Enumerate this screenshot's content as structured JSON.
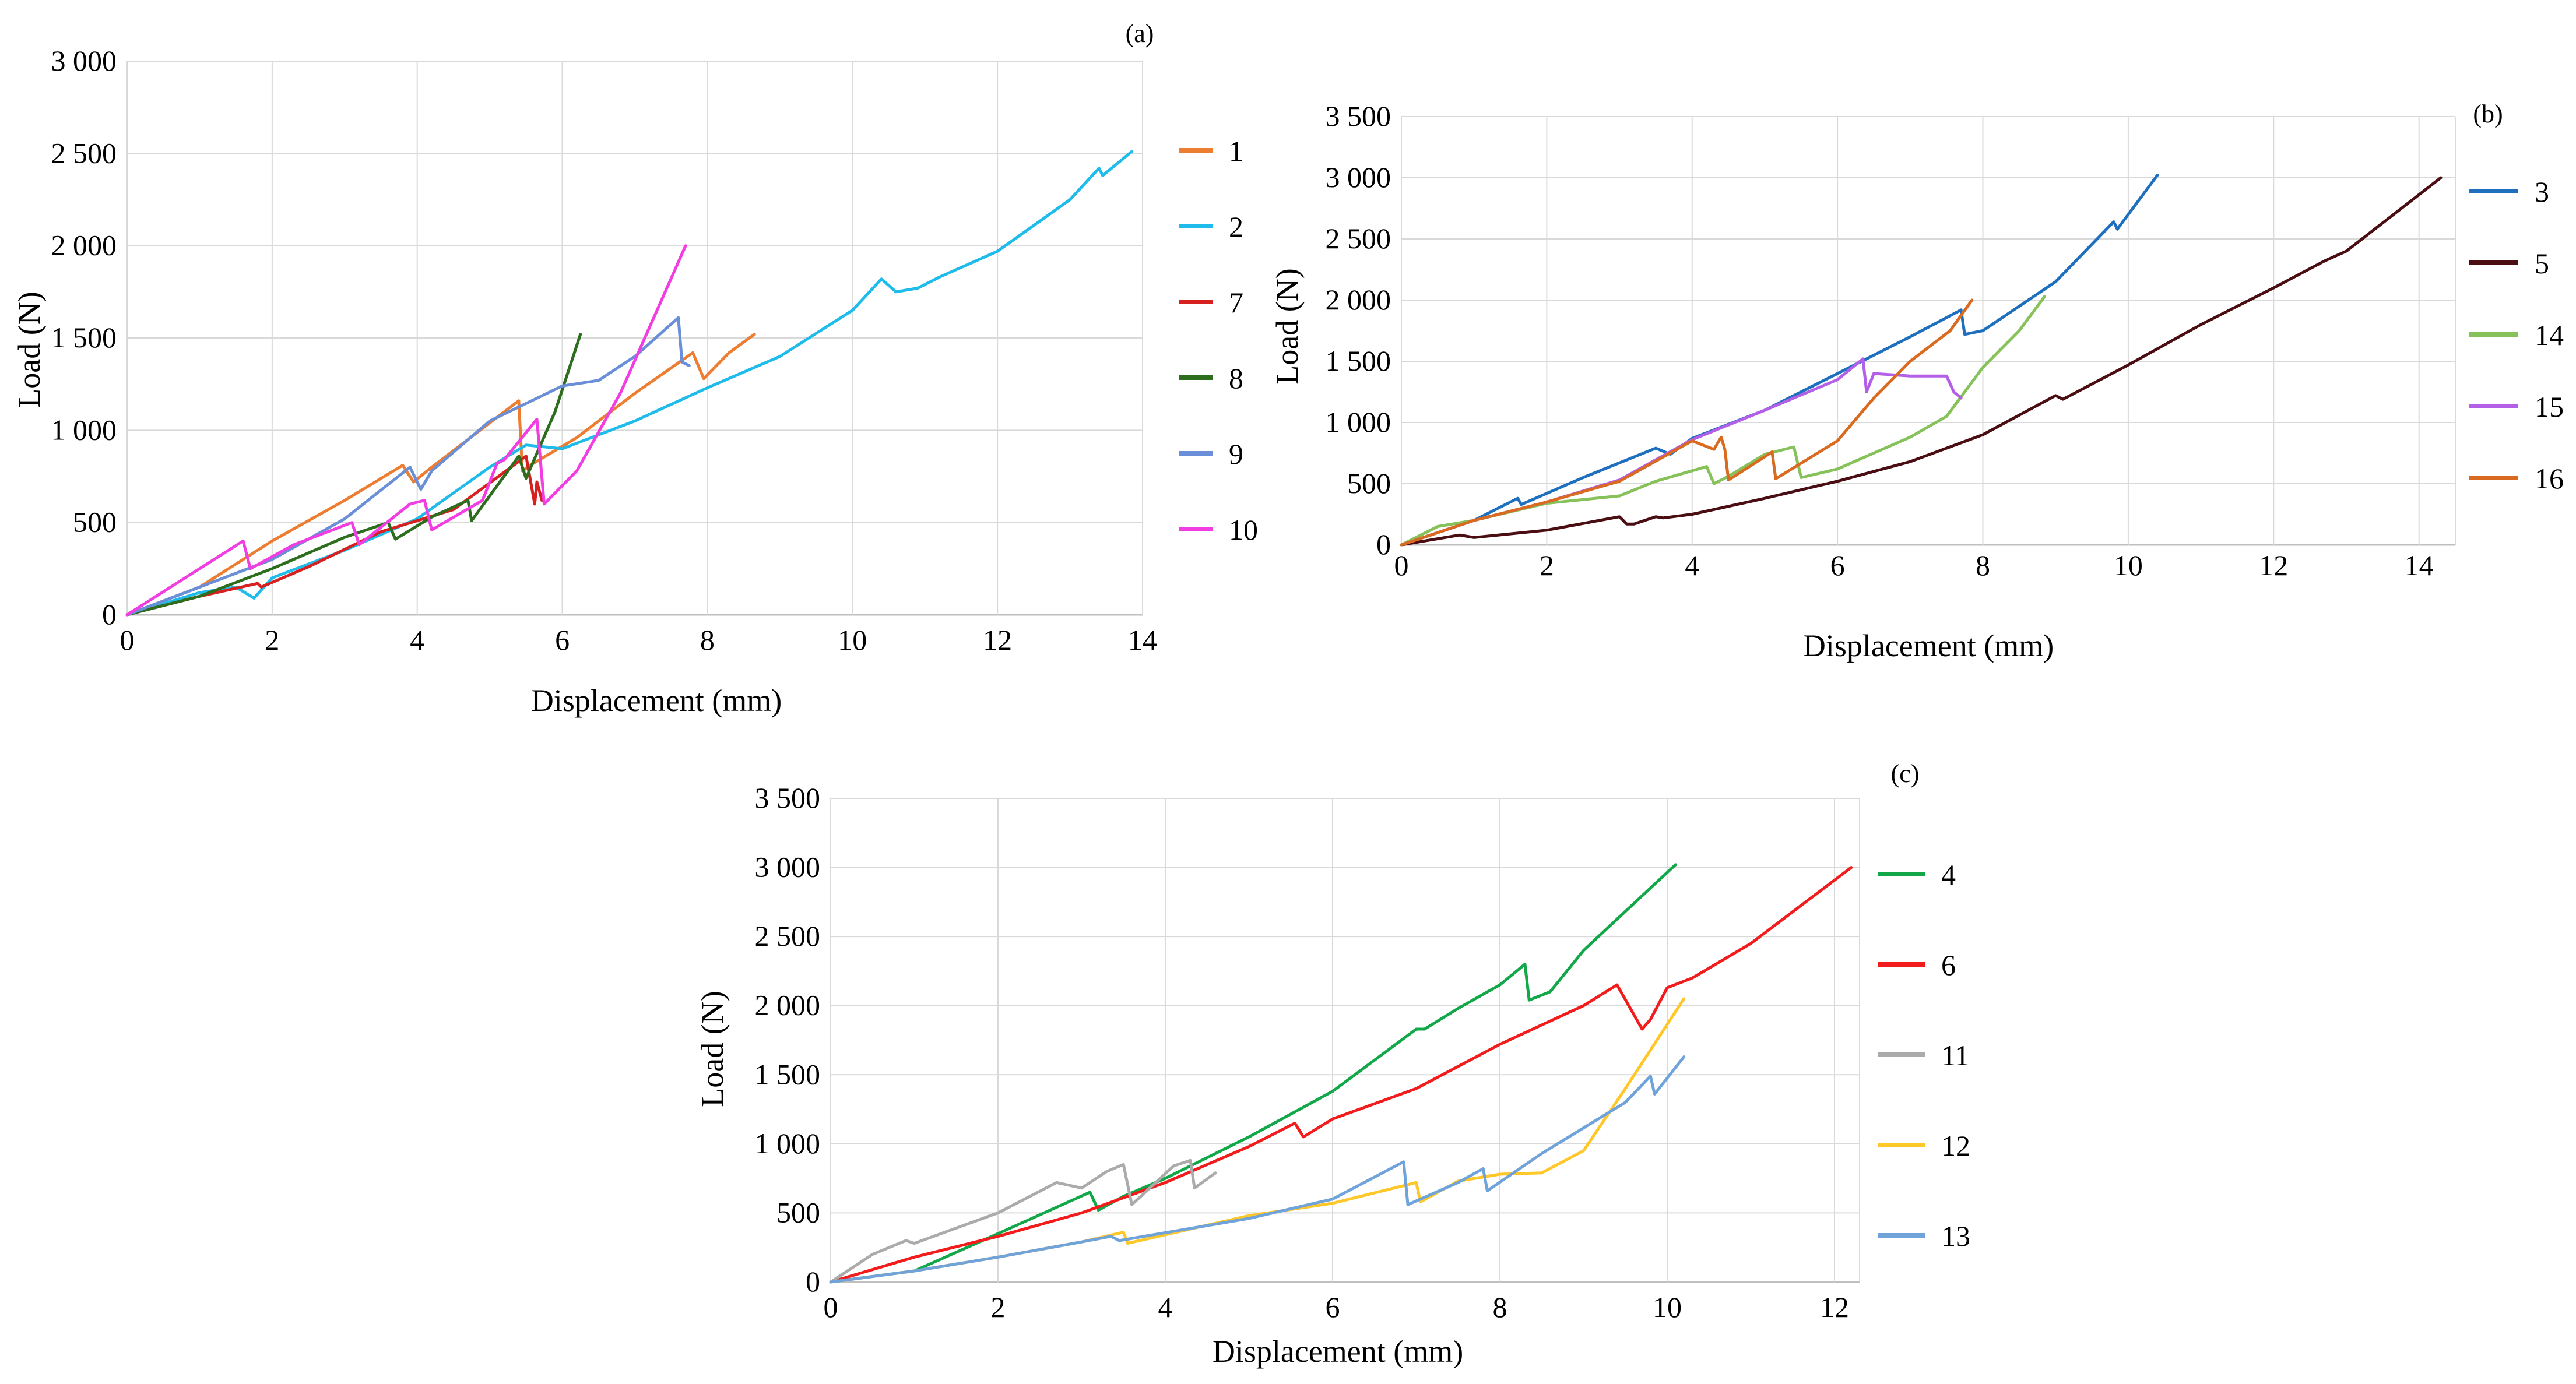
{
  "figure": {
    "panels": [
      "(a)",
      "(b)",
      "(c)"
    ]
  },
  "chart_data": [
    {
      "id": "a",
      "type": "line",
      "panel_label": "(a)",
      "xlabel": "Displacement (mm)",
      "ylabel": "Load (N)",
      "xlim": [
        0,
        14
      ],
      "ylim": [
        0,
        3000
      ],
      "xticks": [
        0,
        2,
        4,
        6,
        8,
        10,
        12,
        14
      ],
      "yticks": [
        0,
        500,
        1000,
        1500,
        2000,
        2500,
        3000
      ],
      "xtick_labels": [
        "0",
        "2",
        "4",
        "6",
        "8",
        "10",
        "12",
        "14"
      ],
      "ytick_labels": [
        "0",
        "500",
        "1 000",
        "1 500",
        "2 000",
        "2 500",
        "3 000"
      ],
      "grid": true,
      "legend_position": "right",
      "series": [
        {
          "name": "1",
          "color": "#ED7D31",
          "x": [
            0,
            1,
            2,
            3,
            3.8,
            3.95,
            4.2,
            5.4,
            5.45,
            5.6,
            6.2,
            7.0,
            7.8,
            7.95,
            8.3,
            8.65
          ],
          "y": [
            0,
            150,
            400,
            620,
            810,
            720,
            800,
            1160,
            780,
            820,
            960,
            1200,
            1420,
            1280,
            1420,
            1520
          ]
        },
        {
          "name": "2",
          "color": "#1FBCEB",
          "x": [
            0,
            1,
            1.5,
            1.75,
            2.0,
            3,
            4,
            5,
            5.5,
            6,
            7,
            8,
            9,
            10,
            10.4,
            10.6,
            10.9,
            11.2,
            12,
            13,
            13.4,
            13.45,
            13.85
          ],
          "y": [
            0,
            120,
            150,
            90,
            200,
            350,
            520,
            800,
            920,
            900,
            1050,
            1230,
            1400,
            1650,
            1820,
            1750,
            1770,
            1830,
            1970,
            2250,
            2420,
            2380,
            2510
          ]
        },
        {
          "name": "7",
          "color": "#D72020",
          "x": [
            0,
            1,
            1.8,
            1.85,
            2.5,
            3.5,
            4.5,
            5.5,
            5.62,
            5.65,
            5.72
          ],
          "y": [
            0,
            100,
            170,
            150,
            260,
            450,
            570,
            860,
            600,
            720,
            620
          ]
        },
        {
          "name": "8",
          "color": "#2D6E1E",
          "x": [
            0,
            1,
            2,
            3,
            3.6,
            3.7,
            4.2,
            4.7,
            4.75,
            5.4,
            5.5,
            5.9,
            6.25
          ],
          "y": [
            0,
            100,
            250,
            420,
            500,
            410,
            530,
            620,
            510,
            860,
            740,
            1100,
            1520
          ]
        },
        {
          "name": "9",
          "color": "#6A8FD8",
          "x": [
            0,
            1,
            2,
            3,
            3.9,
            4.05,
            4.2,
            5,
            6,
            6.5,
            7.0,
            7.6,
            7.65,
            7.75
          ],
          "y": [
            0,
            150,
            300,
            520,
            800,
            680,
            780,
            1050,
            1240,
            1270,
            1400,
            1610,
            1370,
            1350
          ]
        },
        {
          "name": "10",
          "color": "#F23DE2",
          "x": [
            0,
            0.8,
            1.6,
            1.7,
            2.3,
            3.1,
            3.2,
            3.9,
            4.1,
            4.2,
            4.9,
            5.1,
            5.2,
            5.65,
            5.75,
            6.2,
            6.8,
            7.7
          ],
          "y": [
            0,
            200,
            400,
            250,
            380,
            500,
            380,
            600,
            620,
            460,
            620,
            820,
            840,
            1060,
            600,
            780,
            1200,
            2000
          ]
        }
      ]
    },
    {
      "id": "b",
      "type": "line",
      "panel_label": "(b)",
      "xlabel": "Displacement (mm)",
      "ylabel": "Load (N)",
      "xlim": [
        0,
        14.5
      ],
      "ylim": [
        0,
        3500
      ],
      "xticks": [
        0,
        2,
        4,
        6,
        8,
        10,
        12,
        14
      ],
      "yticks": [
        0,
        500,
        1000,
        1500,
        2000,
        2500,
        3000,
        3500
      ],
      "xtick_labels": [
        "0",
        "2",
        "4",
        "6",
        "8",
        "10",
        "12",
        "14"
      ],
      "ytick_labels": [
        "0",
        "500",
        "1 000",
        "1 500",
        "2 000",
        "2 500",
        "3 000",
        "3 500"
      ],
      "grid": true,
      "legend_position": "right",
      "series": [
        {
          "name": "3",
          "color": "#1F6FBF",
          "x": [
            0,
            1,
            1.6,
            1.65,
            2.5,
            3.5,
            3.7,
            4,
            5,
            6,
            7,
            7.7,
            7.75,
            8,
            9,
            9.8,
            9.85,
            10.4
          ],
          "y": [
            0,
            200,
            380,
            330,
            550,
            790,
            740,
            870,
            1100,
            1400,
            1700,
            1920,
            1720,
            1750,
            2150,
            2640,
            2580,
            3020
          ]
        },
        {
          "name": "5",
          "color": "#4A0E12",
          "x": [
            0,
            0.8,
            1.0,
            2,
            3,
            3.1,
            3.2,
            3.5,
            3.6,
            4,
            5,
            6,
            7,
            8,
            9,
            9.1,
            9.2,
            10,
            11,
            12,
            12.7,
            13,
            14.3
          ],
          "y": [
            0,
            80,
            60,
            120,
            230,
            170,
            170,
            230,
            220,
            250,
            380,
            520,
            680,
            900,
            1220,
            1190,
            1220,
            1470,
            1800,
            2100,
            2320,
            2400,
            3000
          ]
        },
        {
          "name": "14",
          "color": "#86C15A",
          "x": [
            0,
            0.5,
            1,
            2,
            3,
            3.5,
            4.2,
            4.3,
            4.5,
            5,
            5.4,
            5.5,
            6,
            7,
            7.5,
            8,
            8.5,
            8.85
          ],
          "y": [
            0,
            150,
            200,
            340,
            400,
            520,
            640,
            500,
            560,
            740,
            800,
            550,
            620,
            880,
            1050,
            1450,
            1750,
            2030
          ]
        },
        {
          "name": "15",
          "color": "#B35FE8",
          "x": [
            0,
            1,
            2,
            3,
            4,
            5,
            6,
            6.35,
            6.4,
            6.5,
            7,
            7.5,
            7.6,
            7.7
          ],
          "y": [
            0,
            200,
            350,
            530,
            860,
            1100,
            1350,
            1520,
            1250,
            1400,
            1380,
            1380,
            1250,
            1200
          ]
        },
        {
          "name": "16",
          "color": "#D96A1F",
          "x": [
            0,
            1,
            2,
            3,
            4,
            4.3,
            4.4,
            4.45,
            4.5,
            5,
            5.1,
            5.15,
            6,
            6.5,
            7,
            7.55,
            7.85
          ],
          "y": [
            0,
            200,
            350,
            520,
            850,
            780,
            880,
            780,
            530,
            720,
            760,
            540,
            850,
            1200,
            1500,
            1750,
            2000
          ]
        }
      ]
    },
    {
      "id": "c",
      "type": "line",
      "panel_label": "(c)",
      "xlabel": "Displacement (mm)",
      "ylabel": "Load (N)",
      "xlim": [
        0,
        12.3
      ],
      "ylim": [
        0,
        3500
      ],
      "xticks": [
        0,
        2,
        4,
        6,
        8,
        10,
        12
      ],
      "yticks": [
        0,
        500,
        1000,
        1500,
        2000,
        2500,
        3000,
        3500
      ],
      "xtick_labels": [
        "0",
        "2",
        "4",
        "6",
        "8",
        "10",
        "12"
      ],
      "ytick_labels": [
        "0",
        "500",
        "1 000",
        "1 500",
        "2 000",
        "2 500",
        "3 000",
        "3 500"
      ],
      "grid": true,
      "legend_position": "right",
      "series": [
        {
          "name": "4",
          "color": "#12A84A",
          "x": [
            0,
            1,
            2,
            3.1,
            3.2,
            3.5,
            4,
            5,
            6,
            7,
            7.1,
            7.5,
            8,
            8.3,
            8.35,
            8.6,
            9,
            10.1
          ],
          "y": [
            0,
            80,
            350,
            650,
            520,
            620,
            750,
            1050,
            1380,
            1830,
            1830,
            1980,
            2150,
            2300,
            2040,
            2100,
            2400,
            3020
          ]
        },
        {
          "name": "6",
          "color": "#F21C1C",
          "x": [
            0,
            1,
            2,
            3,
            4,
            5,
            5.55,
            5.65,
            6,
            7,
            8,
            9,
            9.4,
            9.7,
            9.8,
            10,
            10.3,
            11,
            12.2
          ],
          "y": [
            0,
            180,
            330,
            500,
            720,
            980,
            1150,
            1050,
            1180,
            1400,
            1720,
            2000,
            2150,
            1830,
            1900,
            2130,
            2200,
            2450,
            3000
          ]
        },
        {
          "name": "11",
          "color": "#ABABAB",
          "x": [
            0,
            0.5,
            0.9,
            1.0,
            2,
            2.7,
            3.0,
            3.3,
            3.5,
            3.6,
            4.1,
            4.3,
            4.35,
            4.6
          ],
          "y": [
            0,
            200,
            300,
            280,
            500,
            720,
            680,
            800,
            850,
            560,
            840,
            880,
            680,
            790
          ]
        },
        {
          "name": "12",
          "color": "#FFC727",
          "x": [
            0,
            1,
            2,
            3,
            3.5,
            3.55,
            5,
            6,
            7,
            7.05,
            7.5,
            8,
            8.5,
            9.0,
            9.5,
            10.2
          ],
          "y": [
            0,
            80,
            180,
            290,
            360,
            280,
            480,
            570,
            720,
            580,
            730,
            780,
            790,
            950,
            1400,
            2050
          ]
        },
        {
          "name": "13",
          "color": "#6FA3DA",
          "x": [
            0,
            1,
            2,
            3,
            3.35,
            3.45,
            5,
            6,
            6.85,
            6.9,
            7.5,
            7.8,
            7.85,
            8.5,
            9.5,
            9.8,
            9.85,
            10.2
          ],
          "y": [
            0,
            80,
            180,
            290,
            330,
            300,
            460,
            600,
            870,
            560,
            720,
            820,
            660,
            930,
            1300,
            1490,
            1360,
            1630
          ]
        }
      ]
    }
  ]
}
